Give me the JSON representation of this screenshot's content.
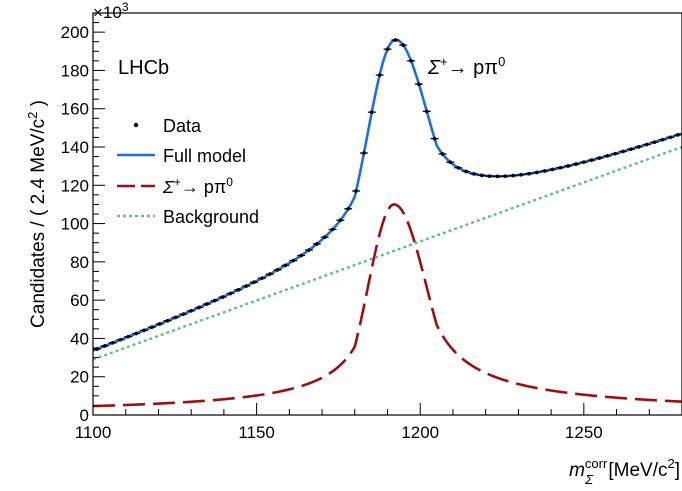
{
  "chart_data": {
    "type": "line",
    "experiment_label": "LHCb",
    "decay_label": {
      "main": "Σ",
      "sup": "+",
      "rest": "→ pπ",
      "rest_sup": "0"
    },
    "xlabel": {
      "main": "m",
      "sup": "corr",
      "sub": "Σ",
      "units": " [MeV/c",
      "units_sup": "2",
      "units_end": "]"
    },
    "ylabel": {
      "main": "Candidates / ( 2.4 MeV/c",
      "sup": "2",
      "end": " )"
    },
    "y_multiplier": {
      "main": "×10",
      "sup": "3"
    },
    "xlim": [
      1100,
      1280
    ],
    "ylim": [
      0,
      210
    ],
    "x_ticks": [
      1100,
      1150,
      1200,
      1250
    ],
    "x_tick_labels": [
      "1100",
      "1150",
      "1200",
      "1250"
    ],
    "y_ticks": [
      0,
      20,
      40,
      60,
      80,
      100,
      120,
      140,
      160,
      180,
      200
    ],
    "y_tick_labels": [
      "0",
      "20",
      "40",
      "60",
      "80",
      "100",
      "120",
      "140",
      "160",
      "180",
      "200"
    ],
    "grid": false,
    "legend_position": "upper-left",
    "legend": [
      {
        "label": "Data",
        "style": "points",
        "color": "#000000"
      },
      {
        "label": "Full model",
        "style": "solid",
        "color": "#1f6fe0"
      },
      {
        "label": {
          "main": "Σ",
          "sup": "+",
          "rest": "→ pπ",
          "rest_sup": "0"
        },
        "style": "dashed",
        "color": "#9b1010"
      },
      {
        "label": "Background",
        "style": "dotted",
        "color": "#5cbf8c"
      }
    ],
    "signal_model": {
      "peak_x": 1192,
      "peak_y": 110,
      "width_left": 8,
      "width_right": 10,
      "tail_left": 1.5,
      "tail_right": 1.3
    },
    "background_model": {
      "slope": 0.6167,
      "intercept_at_1100": 29
    },
    "series": [
      {
        "name": "Data",
        "kind": "points",
        "x_start": 1101.2,
        "x_step": 2.4,
        "count": 75
      },
      {
        "name": "Full model",
        "kind": "curve"
      },
      {
        "name": "Σ+ → pπ0",
        "kind": "curve"
      },
      {
        "name": "Background",
        "kind": "curve"
      }
    ]
  },
  "colors": {
    "data": "#000000",
    "full": "#1f6fe0",
    "signal": "#9b1010",
    "background": "#5cbf8c"
  }
}
